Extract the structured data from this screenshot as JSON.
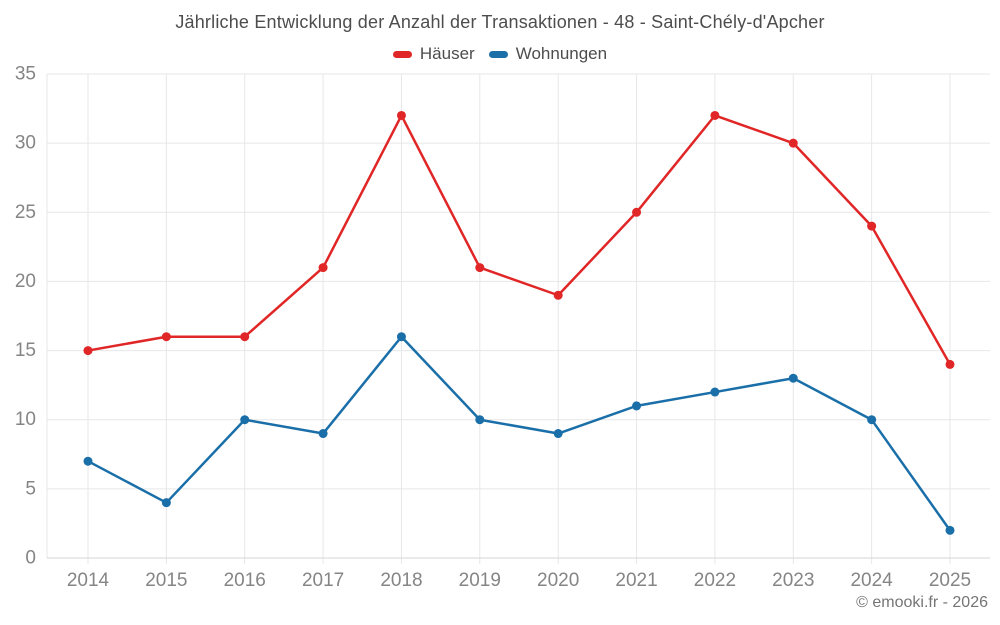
{
  "title": "Jährliche Entwicklung der Anzahl der Transaktionen - 48 - Saint-Chély-d'Apcher",
  "footer": {
    "copyright": "© emooki.fr - 2026"
  },
  "chart_data": {
    "type": "line",
    "title": "Jährliche Entwicklung der Anzahl der Transaktionen - 48 - Saint-Chély-d'Apcher",
    "categories": [
      "2014",
      "2015",
      "2016",
      "2017",
      "2018",
      "2019",
      "2020",
      "2021",
      "2022",
      "2023",
      "2024",
      "2025"
    ],
    "series": [
      {
        "name": "Häuser",
        "color": "#e02626",
        "values": [
          15,
          16,
          16,
          21,
          32,
          21,
          19,
          25,
          32,
          30,
          24,
          14
        ]
      },
      {
        "name": "Wohnungen",
        "color": "#1a6fa9",
        "values": [
          7,
          4,
          10,
          9,
          16,
          10,
          9,
          11,
          12,
          13,
          10,
          2
        ]
      }
    ],
    "xlabel": "",
    "ylabel": "",
    "ylim": [
      0,
      35
    ],
    "ytick_step": 5,
    "yticks": [
      0,
      5,
      10,
      15,
      20,
      25,
      30,
      35
    ],
    "grid": true,
    "legend_position": "top"
  },
  "colors": {
    "background": "#ffffff",
    "grid": "#e7e7e7",
    "axis": "#d6d6d6",
    "title_text": "#4d4d4d",
    "tick_text": "#858585",
    "footer_text": "#757575"
  }
}
